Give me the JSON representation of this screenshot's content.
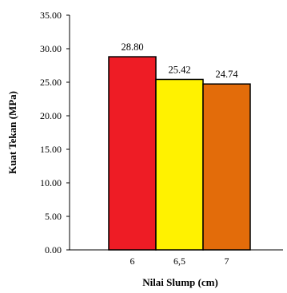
{
  "chart_data": {
    "type": "bar",
    "title": "",
    "xlabel": "Nilai Slump (cm)",
    "ylabel": "Kuat Tekan (MPa)",
    "categories": [
      "6",
      "6,5",
      "7"
    ],
    "values": [
      28.8,
      25.42,
      24.74
    ],
    "data_labels": [
      "28.80",
      "25.42",
      "24.74"
    ],
    "bar_colors": [
      "#ee1c25",
      "#fff200",
      "#e36c0a"
    ],
    "ylim": [
      0,
      35
    ],
    "yticks": [
      "0.00",
      "5.00",
      "10.00",
      "15.00",
      "20.00",
      "25.00",
      "30.00",
      "35.00"
    ],
    "grid": false,
    "legend": "none"
  }
}
